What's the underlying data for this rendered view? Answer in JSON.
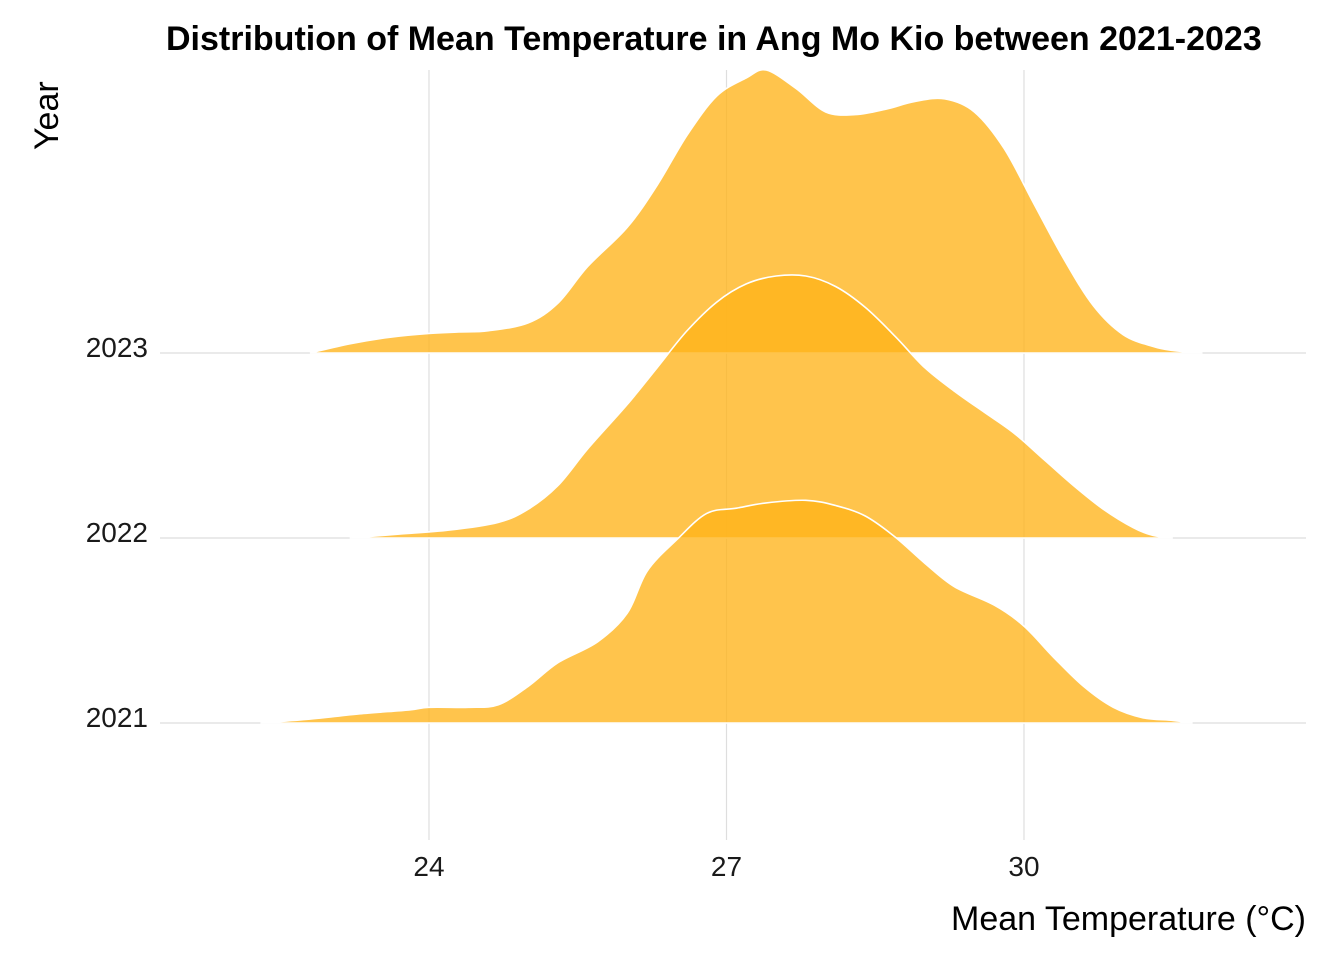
{
  "chart_data": {
    "type": "ridgeline",
    "title": "Distribution of Mean Temperature in Ang Mo Kio between 2021-2023",
    "xlabel": "Mean Temperature (°C)",
    "ylabel": "Year",
    "x_ticks": [
      24,
      27,
      30
    ],
    "xlim": [
      20.3,
      33.0
    ],
    "categories": [
      "2021",
      "2022",
      "2023"
    ],
    "grid": "vertical major + baselines",
    "fill_color": "#FFB31A",
    "fill_opacity": 0.78,
    "outline_color": "#ffffff",
    "series": [
      {
        "name": "2021",
        "x": [
          22.3,
          22.8,
          23.3,
          23.8,
          24.0,
          24.4,
          24.7,
          25.0,
          25.3,
          25.7,
          26.0,
          26.2,
          26.5,
          26.8,
          27.1,
          27.4,
          27.8,
          28.1,
          28.4,
          28.7,
          29.0,
          29.3,
          29.7,
          30.0,
          30.3,
          30.6,
          30.9,
          31.2,
          31.5,
          31.7
        ],
        "density": [
          0.0,
          0.015,
          0.035,
          0.05,
          0.06,
          0.06,
          0.07,
          0.14,
          0.23,
          0.31,
          0.42,
          0.58,
          0.7,
          0.8,
          0.82,
          0.84,
          0.85,
          0.83,
          0.79,
          0.71,
          0.61,
          0.52,
          0.45,
          0.37,
          0.25,
          0.14,
          0.06,
          0.02,
          0.01,
          0.0
        ]
      },
      {
        "name": "2022",
        "x": [
          23.2,
          23.7,
          24.2,
          24.7,
          25.0,
          25.3,
          25.6,
          26.0,
          26.3,
          26.6,
          26.9,
          27.2,
          27.5,
          27.8,
          28.1,
          28.4,
          28.7,
          29.0,
          29.3,
          29.6,
          29.9,
          30.2,
          30.5,
          30.8,
          31.1,
          31.3,
          31.5
        ],
        "density": [
          0.0,
          0.015,
          0.03,
          0.06,
          0.11,
          0.2,
          0.34,
          0.51,
          0.65,
          0.79,
          0.9,
          0.97,
          1.0,
          1.0,
          0.96,
          0.88,
          0.77,
          0.65,
          0.56,
          0.48,
          0.4,
          0.3,
          0.2,
          0.11,
          0.04,
          0.01,
          0.0
        ]
      },
      {
        "name": "2023",
        "x": [
          22.8,
          23.2,
          23.6,
          24.0,
          24.3,
          24.6,
          25.0,
          25.3,
          25.6,
          26.0,
          26.3,
          26.6,
          26.9,
          27.2,
          27.4,
          27.7,
          28.0,
          28.3,
          28.6,
          28.9,
          29.2,
          29.5,
          29.8,
          30.1,
          30.4,
          30.7,
          31.0,
          31.3,
          31.5,
          31.8
        ],
        "density": [
          0.0,
          0.035,
          0.06,
          0.075,
          0.08,
          0.085,
          0.115,
          0.19,
          0.33,
          0.48,
          0.64,
          0.83,
          0.98,
          1.05,
          1.08,
          1.01,
          0.92,
          0.91,
          0.93,
          0.96,
          0.97,
          0.92,
          0.78,
          0.57,
          0.36,
          0.18,
          0.07,
          0.025,
          0.01,
          0.0
        ]
      }
    ]
  }
}
